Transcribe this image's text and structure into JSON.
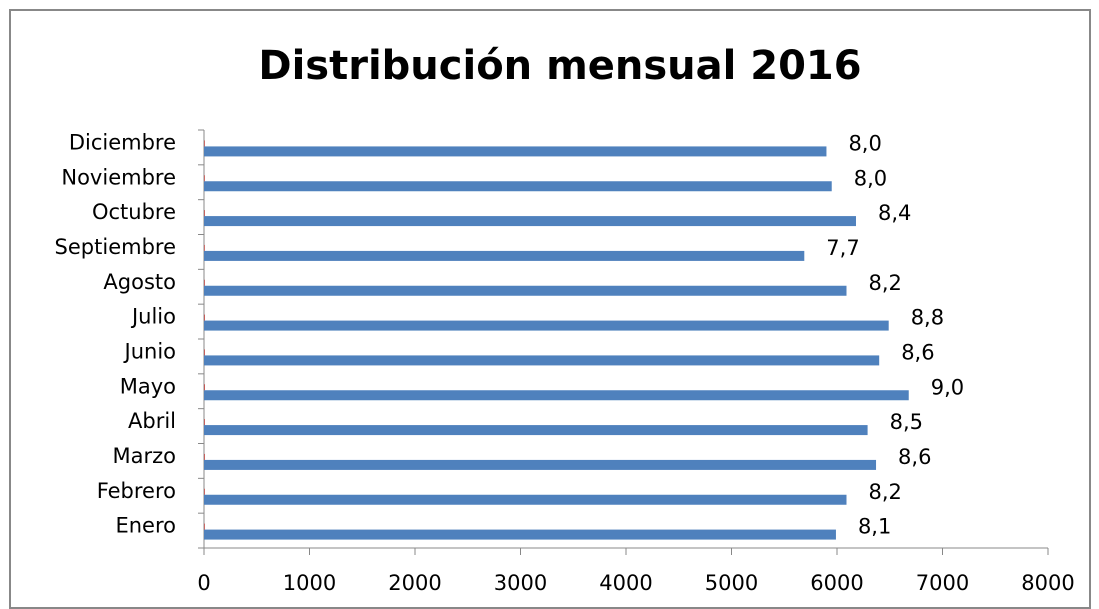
{
  "chart_data": {
    "type": "barh",
    "title": "Distribución mensual 2016",
    "categories": [
      "Enero",
      "Febrero",
      "Marzo",
      "Abril",
      "Mayo",
      "Junio",
      "Julio",
      "Agosto",
      "Septiembre",
      "Octubre",
      "Noviembre",
      "Diciembre"
    ],
    "series": [
      {
        "color": "#4f81bd",
        "values": [
          5990,
          6090,
          6370,
          6290,
          6680,
          6400,
          6490,
          6090,
          5690,
          6180,
          5950,
          5900
        ]
      },
      {
        "color": "#c0504d",
        "values": [
          8.1,
          8.2,
          8.6,
          8.5,
          9.0,
          8.6,
          8.8,
          8.2,
          7.7,
          8.4,
          8.0,
          8.0
        ],
        "value_labels": [
          "8,1",
          "8,2",
          "8,6",
          "8,5",
          "9,0",
          "8,6",
          "8,8",
          "8,2",
          "7,7",
          "8,4",
          "8,0",
          "8,0"
        ]
      }
    ],
    "xlim": [
      0,
      8000
    ],
    "xticks": [
      0,
      1000,
      2000,
      3000,
      4000,
      5000,
      6000,
      7000,
      8000
    ],
    "grid": false
  }
}
